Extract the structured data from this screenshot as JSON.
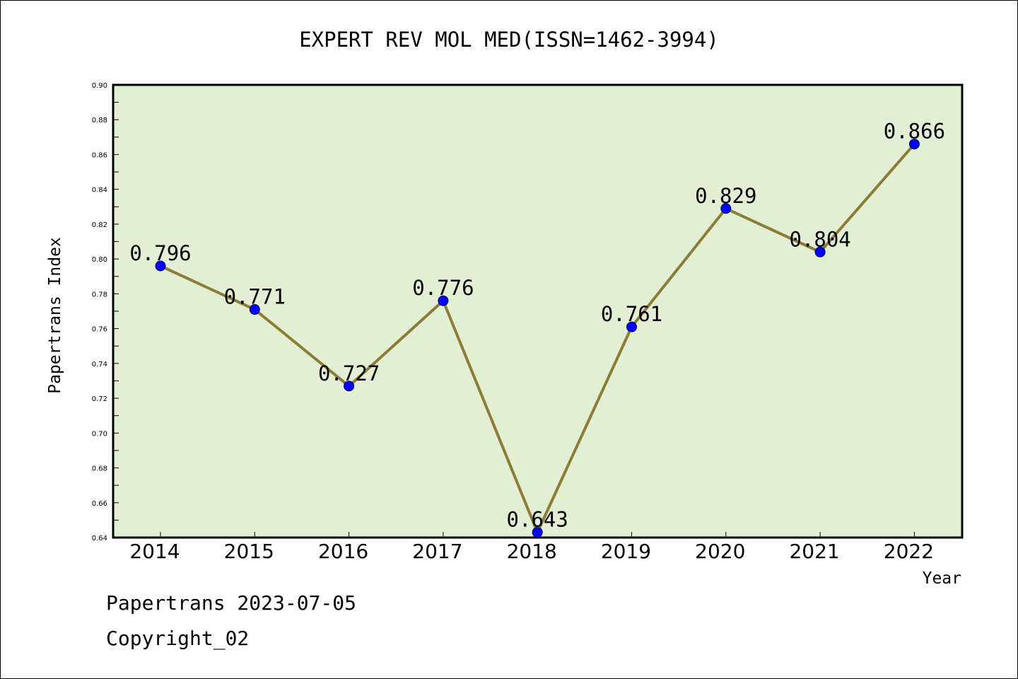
{
  "chart_data": {
    "type": "line",
    "title": "EXPERT REV MOL MED(ISSN=1462-3994)",
    "xlabel": "Year",
    "ylabel": "Papertrans Index",
    "categories": [
      "2014",
      "2015",
      "2016",
      "2017",
      "2018",
      "2019",
      "2020",
      "2021",
      "2022"
    ],
    "values": [
      0.796,
      0.771,
      0.727,
      0.776,
      0.643,
      0.761,
      0.829,
      0.804,
      0.866
    ],
    "data_labels": [
      "0.796",
      "0.771",
      "0.727",
      "0.776",
      "0.643",
      "0.761",
      "0.829",
      "0.804",
      "0.866"
    ],
    "ylim": [
      0.64,
      0.9
    ],
    "yticks": [
      "0.64",
      "0.66",
      "0.68",
      "0.70",
      "0.72",
      "0.74",
      "0.76",
      "0.78",
      "0.80",
      "0.82",
      "0.84",
      "0.86",
      "0.88",
      "0.90"
    ],
    "grid": false,
    "colors": {
      "line": "#8b7d35",
      "marker": "#0000ff",
      "plot_background": "#e2efd5",
      "axis": "#000000"
    }
  },
  "footer": {
    "date_line": "Papertrans 2023-07-05",
    "copyright": "Copyright_02"
  }
}
